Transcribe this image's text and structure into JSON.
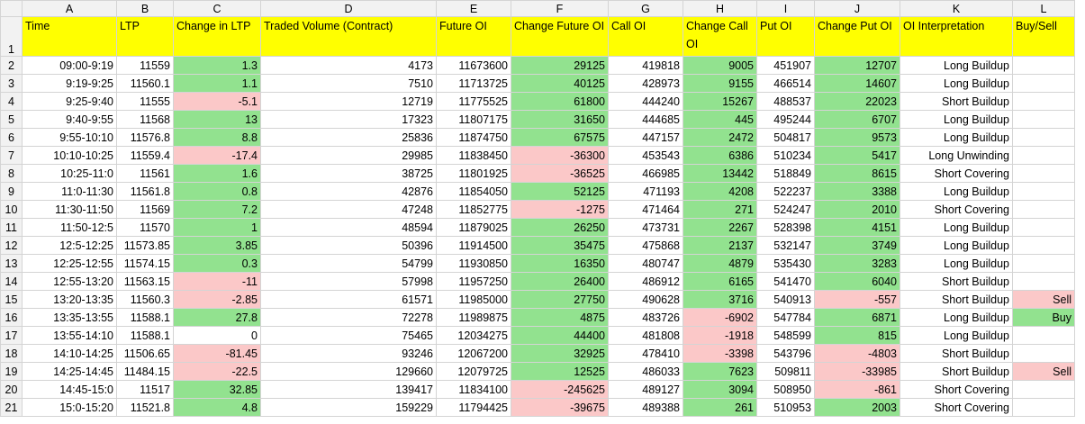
{
  "columns": [
    "A",
    "B",
    "C",
    "D",
    "E",
    "F",
    "G",
    "H",
    "I",
    "J",
    "K",
    "L"
  ],
  "header_row_num": "1",
  "headers": {
    "time": "Time",
    "ltp": "LTP",
    "change_ltp": "Change in LTP",
    "traded_volume": "Traded Volume (Contract)",
    "future_oi": "Future OI",
    "change_future_oi": "Change Future OI",
    "call_oi": "Call OI",
    "change_call_oi": "Change Call OI",
    "put_oi": "Put OI",
    "change_put_oi": "Change Put OI",
    "oi_interpretation": "OI Interpretation",
    "buy_sell": "Buy/Sell"
  },
  "colors": {
    "header_fill": "#ffff00",
    "positive_fill": "#92e28f",
    "negative_fill": "#fbc8c8"
  },
  "rows": [
    {
      "num": "2",
      "time": "09:00-9:19",
      "ltp": "11559",
      "chg_ltp": "1.3",
      "chg_ltp_c": "green",
      "vol": "4173",
      "fut_oi": "11673600",
      "chg_fut": "29125",
      "chg_fut_c": "green",
      "call_oi": "419818",
      "chg_call": "9005",
      "chg_call_c": "green",
      "put_oi": "451907",
      "chg_put": "12707",
      "chg_put_c": "green",
      "interp": "Long Buildup",
      "signal": "",
      "signal_c": "blank"
    },
    {
      "num": "3",
      "time": "9:19-9:25",
      "ltp": "11560.1",
      "chg_ltp": "1.1",
      "chg_ltp_c": "green",
      "vol": "7510",
      "fut_oi": "11713725",
      "chg_fut": "40125",
      "chg_fut_c": "green",
      "call_oi": "428973",
      "chg_call": "9155",
      "chg_call_c": "green",
      "put_oi": "466514",
      "chg_put": "14607",
      "chg_put_c": "green",
      "interp": "Long Buildup",
      "signal": "",
      "signal_c": "blank"
    },
    {
      "num": "4",
      "time": "9:25-9:40",
      "ltp": "11555",
      "chg_ltp": "-5.1",
      "chg_ltp_c": "red",
      "vol": "12719",
      "fut_oi": "11775525",
      "chg_fut": "61800",
      "chg_fut_c": "green",
      "call_oi": "444240",
      "chg_call": "15267",
      "chg_call_c": "green",
      "put_oi": "488537",
      "chg_put": "22023",
      "chg_put_c": "green",
      "interp": "Short Buildup",
      "signal": "",
      "signal_c": "blank"
    },
    {
      "num": "5",
      "time": "9:40-9:55",
      "ltp": "11568",
      "chg_ltp": "13",
      "chg_ltp_c": "green",
      "vol": "17323",
      "fut_oi": "11807175",
      "chg_fut": "31650",
      "chg_fut_c": "green",
      "call_oi": "444685",
      "chg_call": "445",
      "chg_call_c": "green",
      "put_oi": "495244",
      "chg_put": "6707",
      "chg_put_c": "green",
      "interp": "Long Buildup",
      "signal": "",
      "signal_c": "blank"
    },
    {
      "num": "6",
      "time": "9:55-10:10",
      "ltp": "11576.8",
      "chg_ltp": "8.8",
      "chg_ltp_c": "green",
      "vol": "25836",
      "fut_oi": "11874750",
      "chg_fut": "67575",
      "chg_fut_c": "green",
      "call_oi": "447157",
      "chg_call": "2472",
      "chg_call_c": "green",
      "put_oi": "504817",
      "chg_put": "9573",
      "chg_put_c": "green",
      "interp": "Long Buildup",
      "signal": "",
      "signal_c": "blank"
    },
    {
      "num": "7",
      "time": "10:10-10:25",
      "ltp": "11559.4",
      "chg_ltp": "-17.4",
      "chg_ltp_c": "red",
      "vol": "29985",
      "fut_oi": "11838450",
      "chg_fut": "-36300",
      "chg_fut_c": "red",
      "call_oi": "453543",
      "chg_call": "6386",
      "chg_call_c": "green",
      "put_oi": "510234",
      "chg_put": "5417",
      "chg_put_c": "green",
      "interp": "Long Unwinding",
      "signal": "",
      "signal_c": "blank"
    },
    {
      "num": "8",
      "time": "10:25-11:0",
      "ltp": "11561",
      "chg_ltp": "1.6",
      "chg_ltp_c": "green",
      "vol": "38725",
      "fut_oi": "11801925",
      "chg_fut": "-36525",
      "chg_fut_c": "red",
      "call_oi": "466985",
      "chg_call": "13442",
      "chg_call_c": "green",
      "put_oi": "518849",
      "chg_put": "8615",
      "chg_put_c": "green",
      "interp": "Short Covering",
      "signal": "",
      "signal_c": "blank"
    },
    {
      "num": "9",
      "time": "11:0-11:30",
      "ltp": "11561.8",
      "chg_ltp": "0.8",
      "chg_ltp_c": "green",
      "vol": "42876",
      "fut_oi": "11854050",
      "chg_fut": "52125",
      "chg_fut_c": "green",
      "call_oi": "471193",
      "chg_call": "4208",
      "chg_call_c": "green",
      "put_oi": "522237",
      "chg_put": "3388",
      "chg_put_c": "green",
      "interp": "Long Buildup",
      "signal": "",
      "signal_c": "blank"
    },
    {
      "num": "10",
      "time": "11:30-11:50",
      "ltp": "11569",
      "chg_ltp": "7.2",
      "chg_ltp_c": "green",
      "vol": "47248",
      "fut_oi": "11852775",
      "chg_fut": "-1275",
      "chg_fut_c": "red",
      "call_oi": "471464",
      "chg_call": "271",
      "chg_call_c": "green",
      "put_oi": "524247",
      "chg_put": "2010",
      "chg_put_c": "green",
      "interp": "Short Covering",
      "signal": "",
      "signal_c": "blank"
    },
    {
      "num": "11",
      "time": "11:50-12:5",
      "ltp": "11570",
      "chg_ltp": "1",
      "chg_ltp_c": "green",
      "vol": "48594",
      "fut_oi": "11879025",
      "chg_fut": "26250",
      "chg_fut_c": "green",
      "call_oi": "473731",
      "chg_call": "2267",
      "chg_call_c": "green",
      "put_oi": "528398",
      "chg_put": "4151",
      "chg_put_c": "green",
      "interp": "Long Buildup",
      "signal": "",
      "signal_c": "blank"
    },
    {
      "num": "12",
      "time": "12:5-12:25",
      "ltp": "11573.85",
      "chg_ltp": "3.85",
      "chg_ltp_c": "green",
      "vol": "50396",
      "fut_oi": "11914500",
      "chg_fut": "35475",
      "chg_fut_c": "green",
      "call_oi": "475868",
      "chg_call": "2137",
      "chg_call_c": "green",
      "put_oi": "532147",
      "chg_put": "3749",
      "chg_put_c": "green",
      "interp": "Long Buildup",
      "signal": "",
      "signal_c": "blank"
    },
    {
      "num": "13",
      "time": "12:25-12:55",
      "ltp": "11574.15",
      "chg_ltp": "0.3",
      "chg_ltp_c": "green",
      "vol": "54799",
      "fut_oi": "11930850",
      "chg_fut": "16350",
      "chg_fut_c": "green",
      "call_oi": "480747",
      "chg_call": "4879",
      "chg_call_c": "green",
      "put_oi": "535430",
      "chg_put": "3283",
      "chg_put_c": "green",
      "interp": "Long Buildup",
      "signal": "",
      "signal_c": "blank"
    },
    {
      "num": "14",
      "time": "12:55-13:20",
      "ltp": "11563.15",
      "chg_ltp": "-11",
      "chg_ltp_c": "red",
      "vol": "57998",
      "fut_oi": "11957250",
      "chg_fut": "26400",
      "chg_fut_c": "green",
      "call_oi": "486912",
      "chg_call": "6165",
      "chg_call_c": "green",
      "put_oi": "541470",
      "chg_put": "6040",
      "chg_put_c": "green",
      "interp": "Short Buildup",
      "signal": "",
      "signal_c": "blank"
    },
    {
      "num": "15",
      "time": "13:20-13:35",
      "ltp": "11560.3",
      "chg_ltp": "-2.85",
      "chg_ltp_c": "red",
      "vol": "61571",
      "fut_oi": "11985000",
      "chg_fut": "27750",
      "chg_fut_c": "green",
      "call_oi": "490628",
      "chg_call": "3716",
      "chg_call_c": "green",
      "put_oi": "540913",
      "chg_put": "-557",
      "chg_put_c": "red",
      "interp": "Short Buildup",
      "signal": "Sell",
      "signal_c": "red"
    },
    {
      "num": "16",
      "time": "13:35-13:55",
      "ltp": "11588.1",
      "chg_ltp": "27.8",
      "chg_ltp_c": "green",
      "vol": "72278",
      "fut_oi": "11989875",
      "chg_fut": "4875",
      "chg_fut_c": "green",
      "call_oi": "483726",
      "chg_call": "-6902",
      "chg_call_c": "red",
      "put_oi": "547784",
      "chg_put": "6871",
      "chg_put_c": "green",
      "interp": "Long Buildup",
      "signal": "Buy",
      "signal_c": "green"
    },
    {
      "num": "17",
      "time": "13:55-14:10",
      "ltp": "11588.1",
      "chg_ltp": "0",
      "chg_ltp_c": "blank",
      "vol": "75465",
      "fut_oi": "12034275",
      "chg_fut": "44400",
      "chg_fut_c": "green",
      "call_oi": "481808",
      "chg_call": "-1918",
      "chg_call_c": "red",
      "put_oi": "548599",
      "chg_put": "815",
      "chg_put_c": "green",
      "interp": "Long Buildup",
      "signal": "",
      "signal_c": "blank"
    },
    {
      "num": "18",
      "time": "14:10-14:25",
      "ltp": "11506.65",
      "chg_ltp": "-81.45",
      "chg_ltp_c": "red",
      "vol": "93246",
      "fut_oi": "12067200",
      "chg_fut": "32925",
      "chg_fut_c": "green",
      "call_oi": "478410",
      "chg_call": "-3398",
      "chg_call_c": "red",
      "put_oi": "543796",
      "chg_put": "-4803",
      "chg_put_c": "red",
      "interp": "Short Buildup",
      "signal": "",
      "signal_c": "blank"
    },
    {
      "num": "19",
      "time": "14:25-14:45",
      "ltp": "11484.15",
      "chg_ltp": "-22.5",
      "chg_ltp_c": "red",
      "vol": "129660",
      "fut_oi": "12079725",
      "chg_fut": "12525",
      "chg_fut_c": "green",
      "call_oi": "486033",
      "chg_call": "7623",
      "chg_call_c": "green",
      "put_oi": "509811",
      "chg_put": "-33985",
      "chg_put_c": "red",
      "interp": "Short Buildup",
      "signal": "Sell",
      "signal_c": "red"
    },
    {
      "num": "20",
      "time": "14:45-15:0",
      "ltp": "11517",
      "chg_ltp": "32.85",
      "chg_ltp_c": "green",
      "vol": "139417",
      "fut_oi": "11834100",
      "chg_fut": "-245625",
      "chg_fut_c": "red",
      "call_oi": "489127",
      "chg_call": "3094",
      "chg_call_c": "green",
      "put_oi": "508950",
      "chg_put": "-861",
      "chg_put_c": "red",
      "interp": "Short Covering",
      "signal": "",
      "signal_c": "blank"
    },
    {
      "num": "21",
      "time": "15:0-15:20",
      "ltp": "11521.8",
      "chg_ltp": "4.8",
      "chg_ltp_c": "green",
      "vol": "159229",
      "fut_oi": "11794425",
      "chg_fut": "-39675",
      "chg_fut_c": "red",
      "call_oi": "489388",
      "chg_call": "261",
      "chg_call_c": "green",
      "put_oi": "510953",
      "chg_put": "2003",
      "chg_put_c": "green",
      "interp": "Short Covering",
      "signal": "",
      "signal_c": "blank"
    }
  ]
}
